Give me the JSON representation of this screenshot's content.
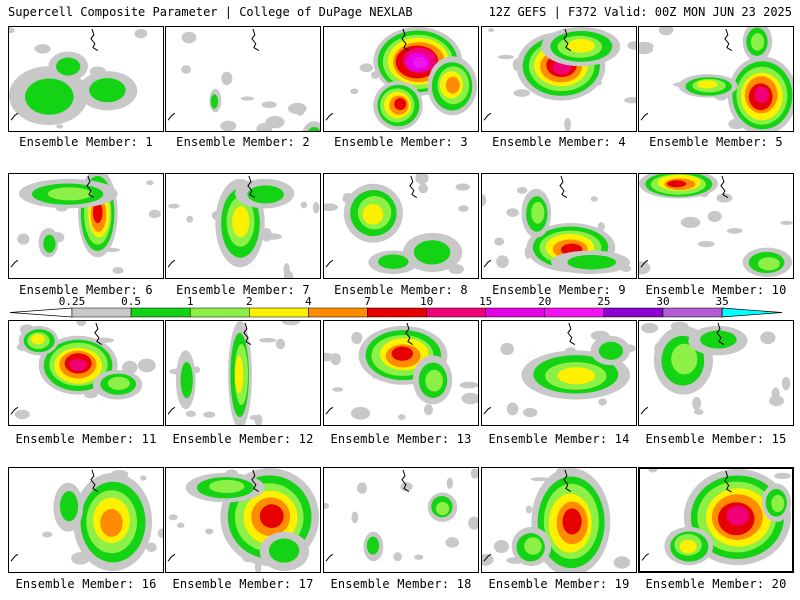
{
  "header": {
    "left": "Supercell Composite Parameter | College of DuPage NEXLAB",
    "right": "12Z GEFS | F372 Valid: 00Z MON JUN 23 2025"
  },
  "caption_prefix": "Ensemble Member:",
  "members": [
    {
      "id": 1,
      "label": "Ensemble Member: 1",
      "max_level": 2
    },
    {
      "id": 2,
      "label": "Ensemble Member: 2",
      "max_level": 2
    },
    {
      "id": 3,
      "label": "Ensemble Member: 3",
      "max_level": 9
    },
    {
      "id": 4,
      "label": "Ensemble Member: 4",
      "max_level": 7
    },
    {
      "id": 5,
      "label": "Ensemble Member: 5",
      "max_level": 7
    },
    {
      "id": 6,
      "label": "Ensemble Member: 6",
      "max_level": 6
    },
    {
      "id": 7,
      "label": "Ensemble Member: 7",
      "max_level": 4
    },
    {
      "id": 8,
      "label": "Ensemble Member: 8",
      "max_level": 4
    },
    {
      "id": 9,
      "label": "Ensemble Member: 9",
      "max_level": 6
    },
    {
      "id": 10,
      "label": "Ensemble Member: 10",
      "max_level": 6
    },
    {
      "id": 11,
      "label": "Ensemble Member: 11",
      "max_level": 7
    },
    {
      "id": 12,
      "label": "Ensemble Member: 12",
      "max_level": 4
    },
    {
      "id": 13,
      "label": "Ensemble Member: 13",
      "max_level": 6
    },
    {
      "id": 14,
      "label": "Ensemble Member: 14",
      "max_level": 4
    },
    {
      "id": 15,
      "label": "Ensemble Member: 15",
      "max_level": 3
    },
    {
      "id": 16,
      "label": "Ensemble Member: 16",
      "max_level": 5
    },
    {
      "id": 17,
      "label": "Ensemble Member: 17",
      "max_level": 6
    },
    {
      "id": 18,
      "label": "Ensemble Member: 18",
      "max_level": 3
    },
    {
      "id": 19,
      "label": "Ensemble Member: 19",
      "max_level": 6
    },
    {
      "id": 20,
      "label": "Ensemble Member: 20",
      "max_level": 7
    }
  ],
  "colorbar": {
    "ticks": [
      "0.25",
      "0.5",
      "1",
      "2",
      "4",
      "7",
      "10",
      "15",
      "20",
      "25",
      "30",
      "35"
    ],
    "colors": [
      "#ffffff",
      "#c8c8c8",
      "#14d214",
      "#8cf046",
      "#fff000",
      "#ff8c00",
      "#e60000",
      "#f00078",
      "#e600e6",
      "#f014f0",
      "#8c00d2",
      "#b45ad2",
      "#00ffff"
    ]
  }
}
